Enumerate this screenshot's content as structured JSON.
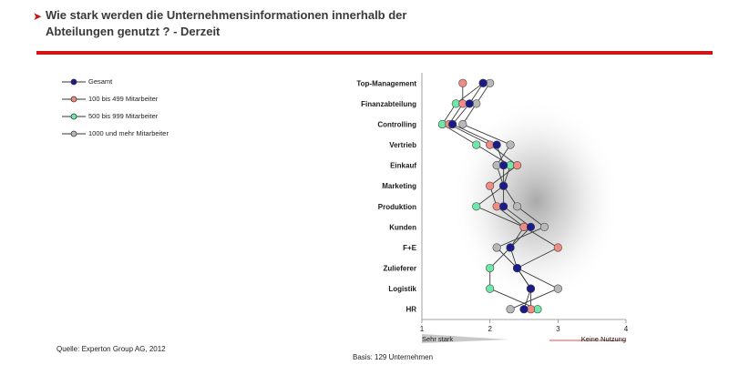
{
  "title": {
    "arrow": "➤",
    "line1": "Wie stark werden die Unternehmensinformationen innerhalb der",
    "line2": "Abteilungen genutzt ? - Derzeit"
  },
  "colors": {
    "accent_red": "#d01515",
    "gesamt": "#1a1a8c",
    "g100": "#f08c84",
    "g500": "#6ee8a8",
    "g1000": "#b8b8b8"
  },
  "legend": [
    {
      "label": "Gesamt",
      "series": "gesamt"
    },
    {
      "label": "100 bis 499 Mitarbeiter",
      "series": "g100"
    },
    {
      "label": "500 bis 999 Mitarbeiter",
      "series": "g500"
    },
    {
      "label": "1000 und mehr Mitarbeiter",
      "series": "g1000"
    }
  ],
  "source": "Quelle: Experton Group AG, 2012",
  "basis": "Basis: 129 Unternehmen",
  "chart_data": {
    "type": "line",
    "orientation": "horizontal",
    "title": "Wie stark werden die Unternehmensinformationen innerhalb der Abteilungen genutzt ? - Derzeit",
    "categories": [
      "Top-Management",
      "Finanzabteilung",
      "Controlling",
      "Vertrieb",
      "Einkauf",
      "Marketing",
      "Produktion",
      "Kunden",
      "F+E",
      "Zulieferer",
      "Logistik",
      "HR"
    ],
    "xlim": [
      1,
      4
    ],
    "xticks": [
      "1",
      "2",
      "3",
      "4"
    ],
    "xlabel_left": "Sehr stark",
    "xlabel_right": "Keine Nutzung",
    "series": [
      {
        "name": "Gesamt",
        "key": "gesamt",
        "values": [
          1.9,
          1.7,
          1.45,
          2.1,
          2.2,
          2.2,
          2.2,
          2.6,
          2.3,
          2.4,
          2.6,
          2.5
        ]
      },
      {
        "name": "100 bis 499 Mitarbeiter",
        "key": "g100",
        "values": [
          1.6,
          1.6,
          1.4,
          2.0,
          2.4,
          2.0,
          2.1,
          2.5,
          3.0,
          2.4,
          2.6,
          2.6
        ]
      },
      {
        "name": "500 bis 999 Mitarbeiter",
        "key": "g500",
        "values": [
          1.9,
          1.5,
          1.3,
          1.8,
          2.3,
          2.2,
          1.8,
          2.5,
          2.3,
          2.0,
          2.0,
          2.7
        ]
      },
      {
        "name": "1000 und mehr Mitarbeiter",
        "key": "g1000",
        "values": [
          2.0,
          1.8,
          1.6,
          2.3,
          2.1,
          2.2,
          2.4,
          2.8,
          2.1,
          2.4,
          3.0,
          2.3
        ]
      }
    ]
  }
}
